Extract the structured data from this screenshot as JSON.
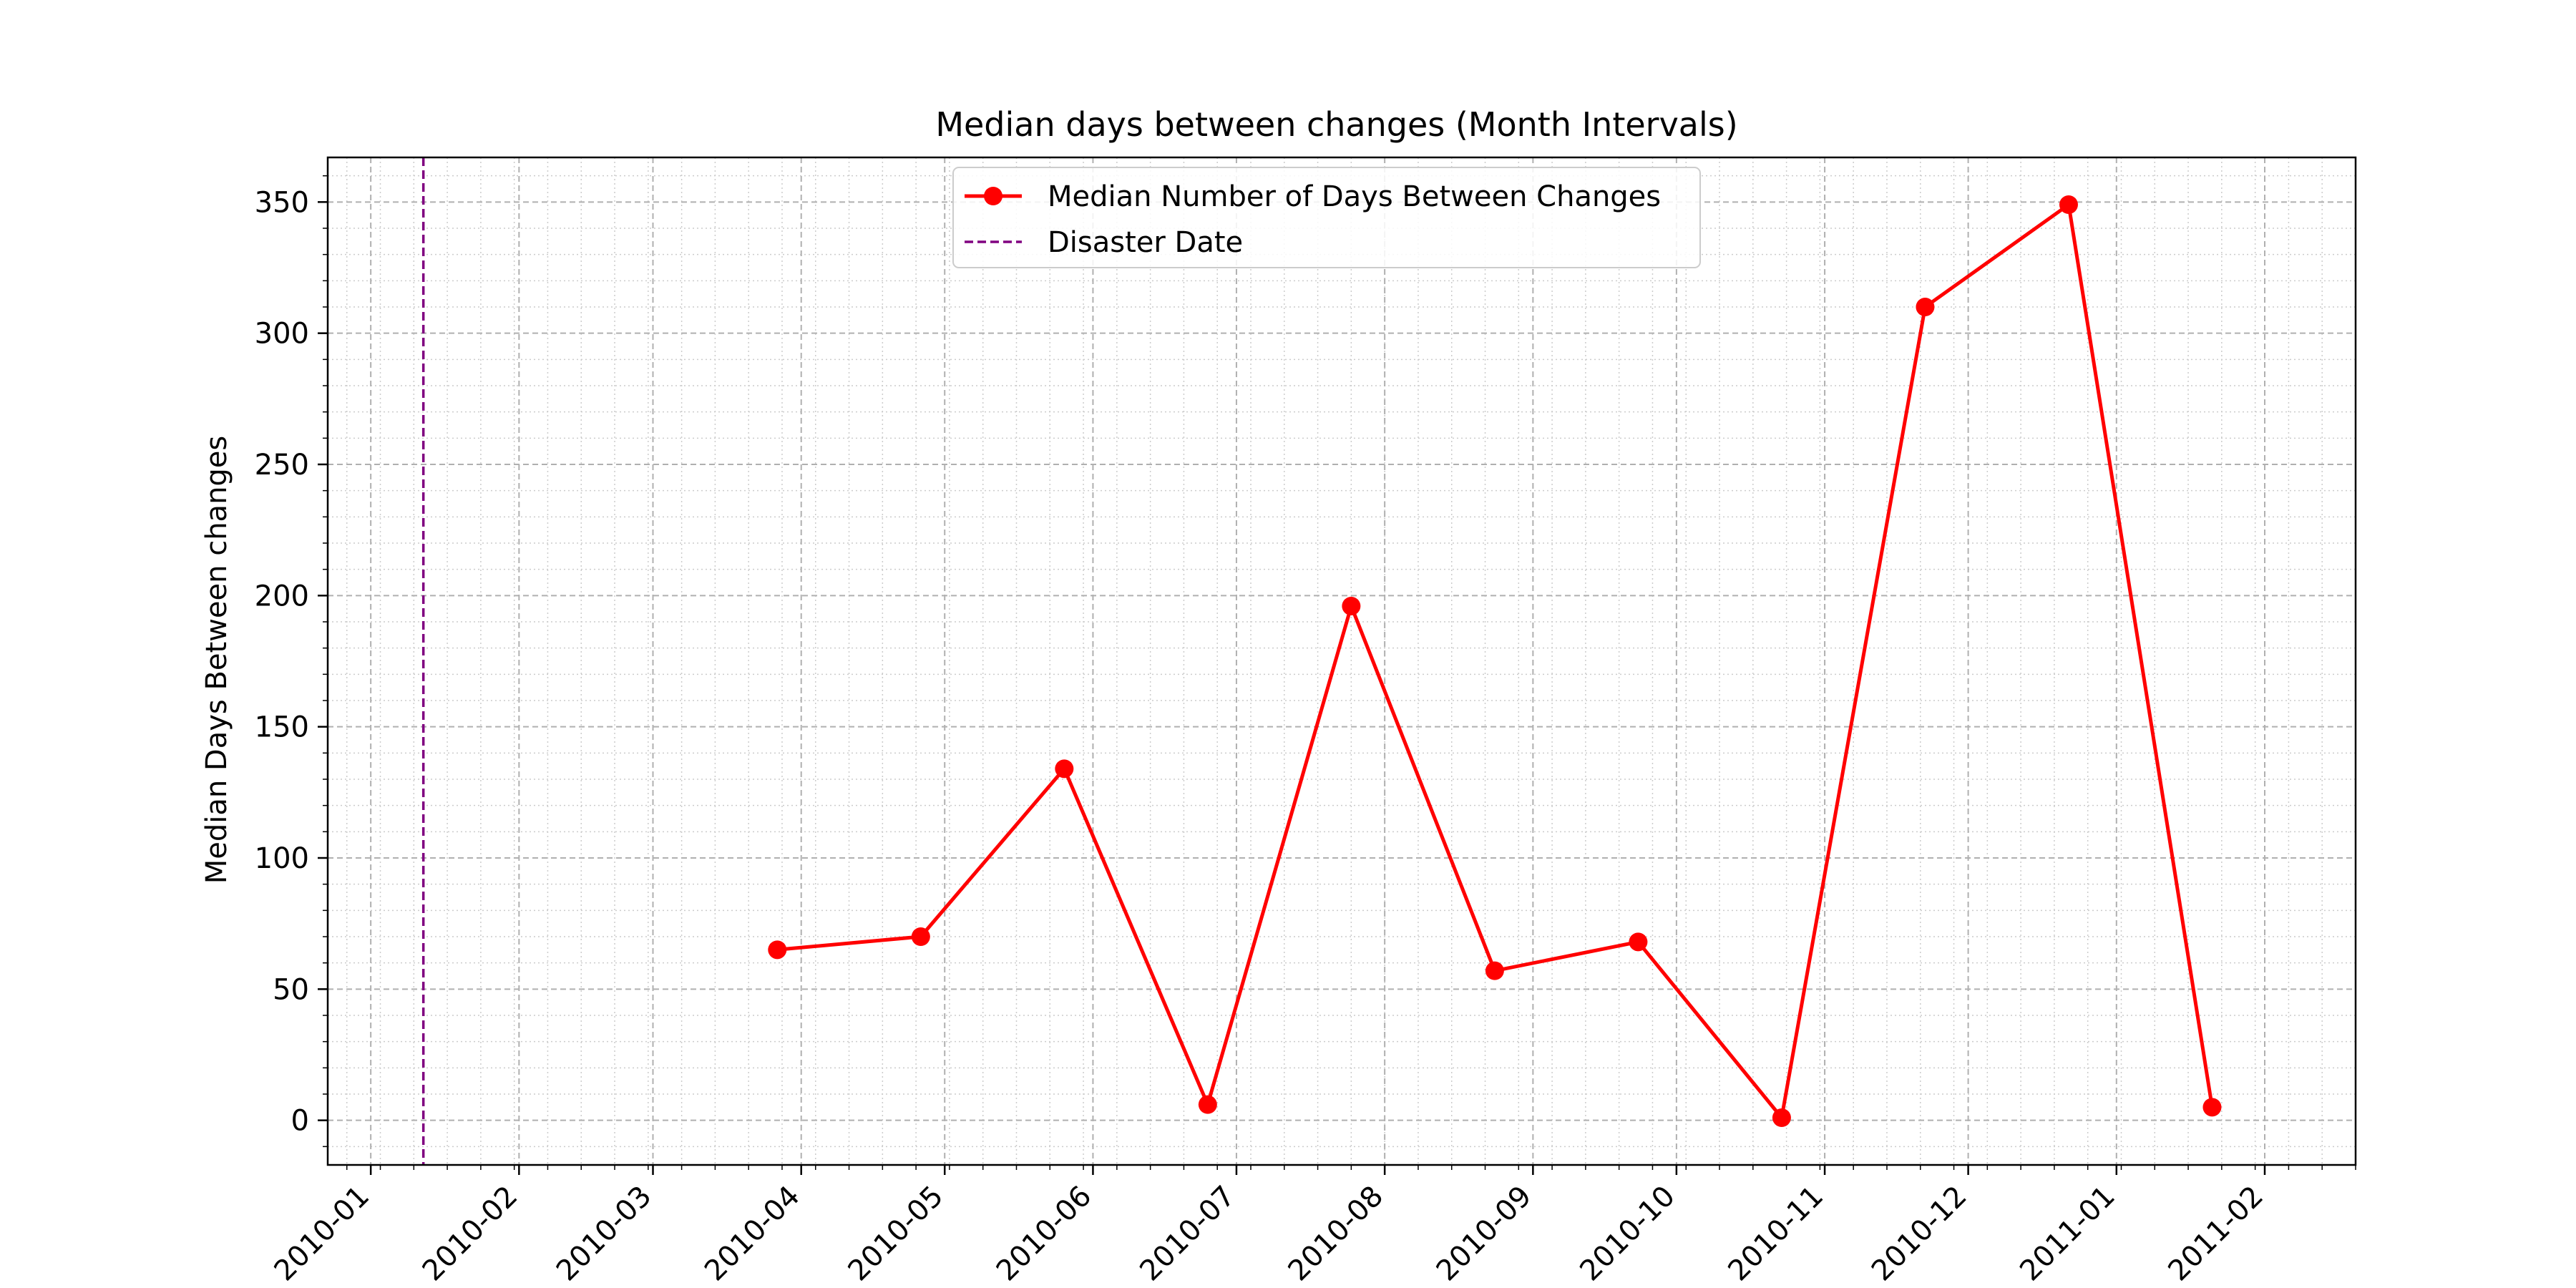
{
  "chart_data": {
    "type": "line",
    "title": "Median days between changes (Month Intervals)",
    "xlabel": "",
    "ylabel": "Median Days Between changes",
    "xlim": [
      "2009-12-23",
      "2011-02-20"
    ],
    "ylim": [
      -17,
      367
    ],
    "x_ticks": [
      "2010-01-01",
      "2010-02-01",
      "2010-03-01",
      "2010-04-01",
      "2010-05-01",
      "2010-06-01",
      "2010-07-01",
      "2010-08-01",
      "2010-09-01",
      "2010-10-01",
      "2010-11-01",
      "2010-12-01",
      "2011-01-01",
      "2011-02-01"
    ],
    "x_tick_labels": [
      "2010-01",
      "2010-02",
      "2010-03",
      "2010-04",
      "2010-05",
      "2010-06",
      "2010-07",
      "2010-08",
      "2010-09",
      "2010-10",
      "2010-11",
      "2010-12",
      "2011-01",
      "2011-02"
    ],
    "y_ticks": [
      0,
      50,
      100,
      150,
      200,
      250,
      300,
      350
    ],
    "y_tick_labels": [
      "0",
      "50",
      "100",
      "150",
      "200",
      "250",
      "300",
      "350"
    ],
    "grid": true,
    "legend_position": "top-center",
    "series": [
      {
        "name": "Median Number of Days Between Changes",
        "color": "#ff0000",
        "marker": "circle",
        "x": [
          "2010-03-27",
          "2010-04-26",
          "2010-05-26",
          "2010-06-25",
          "2010-07-25",
          "2010-08-24",
          "2010-09-23",
          "2010-10-23",
          "2010-11-22",
          "2010-12-22",
          "2011-01-21"
        ],
        "values": [
          65,
          70,
          134,
          6,
          196,
          57,
          68,
          1,
          310,
          349,
          5
        ]
      }
    ],
    "vertical_lines": [
      {
        "name": "Disaster Date",
        "x": "2010-01-12",
        "color": "#800080",
        "style": "dashed"
      }
    ]
  }
}
